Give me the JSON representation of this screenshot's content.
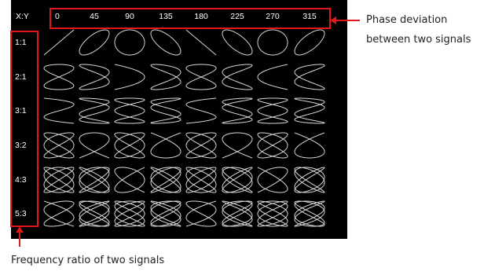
{
  "corner_label": "X:Y",
  "phase_header": [
    "0",
    "45",
    "90",
    "135",
    "180",
    "225",
    "270",
    "315"
  ],
  "ratio_labels": [
    "1:1",
    "2:1",
    "3:1",
    "3:2",
    "4:3",
    "5:3"
  ],
  "ratios": [
    [
      1,
      1
    ],
    [
      2,
      1
    ],
    [
      3,
      1
    ],
    [
      3,
      2
    ],
    [
      4,
      3
    ],
    [
      5,
      3
    ]
  ],
  "phases_deg": [
    0,
    45,
    90,
    135,
    180,
    225,
    270,
    315
  ],
  "annotations": {
    "phase_line1": "Phase deviation",
    "phase_line2": "between two signals",
    "frequency": "Frequency ratio of two signals"
  },
  "colors": {
    "screen_bg": "#000000",
    "curve": "#d8d8d8",
    "label_text": "#ffffff",
    "highlight_box": "#e01818",
    "annotation_text": "#222222"
  }
}
